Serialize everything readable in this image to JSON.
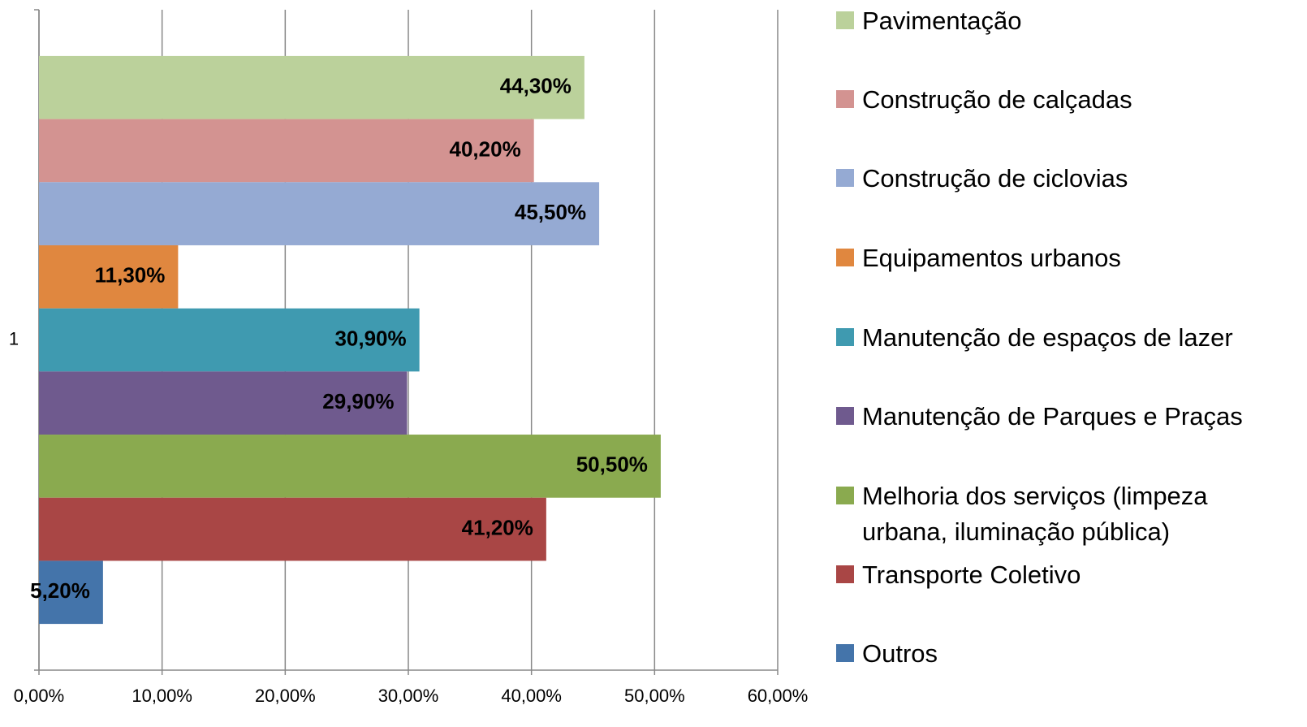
{
  "chart_data": {
    "type": "bar",
    "orientation": "horizontal",
    "categories": [
      "1"
    ],
    "series": [
      {
        "name": "Pavimentação",
        "color": "#bbd19b",
        "values": [
          44.3
        ],
        "value_labels": [
          "44,30%"
        ]
      },
      {
        "name": "Construção de calçadas",
        "color": "#d39391",
        "values": [
          40.2
        ],
        "value_labels": [
          "40,20%"
        ]
      },
      {
        "name": "Construção de ciclovias",
        "color": "#95aad3",
        "values": [
          45.5
        ],
        "value_labels": [
          "45,50%"
        ]
      },
      {
        "name": "Equipamentos urbanos",
        "color": "#e0873f",
        "values": [
          11.3
        ],
        "value_labels": [
          "11,30%"
        ]
      },
      {
        "name": "Manutenção de espaços de lazer",
        "color": "#3f9ab0",
        "values": [
          30.9
        ],
        "value_labels": [
          "30,90%"
        ]
      },
      {
        "name": "Manutenção de Parques e Praças",
        "color": "#6f5a8e",
        "values": [
          29.9
        ],
        "value_labels": [
          "29,90%"
        ]
      },
      {
        "name": "Melhoria dos serviços (limpeza urbana, iluminação pública)",
        "color": "#8aaa4f",
        "values": [
          50.5
        ],
        "value_labels": [
          "50,50%"
        ]
      },
      {
        "name": "Transporte Coletivo",
        "color": "#a94645",
        "values": [
          41.2
        ],
        "value_labels": [
          "41,20%"
        ]
      },
      {
        "name": "Outros",
        "color": "#4474aa",
        "values": [
          5.2
        ],
        "value_labels": [
          "5,20%"
        ]
      }
    ],
    "xlim": [
      0,
      60
    ],
    "xticks": [
      {
        "value": 0,
        "label": "0,00%"
      },
      {
        "value": 10,
        "label": "10,00%"
      },
      {
        "value": 20,
        "label": "20,00%"
      },
      {
        "value": 30,
        "label": "30,00%"
      },
      {
        "value": 40,
        "label": "40,00%"
      },
      {
        "value": 50,
        "label": "50,00%"
      },
      {
        "value": 60,
        "label": "60,00%"
      }
    ],
    "grid": true,
    "legend": "right"
  }
}
